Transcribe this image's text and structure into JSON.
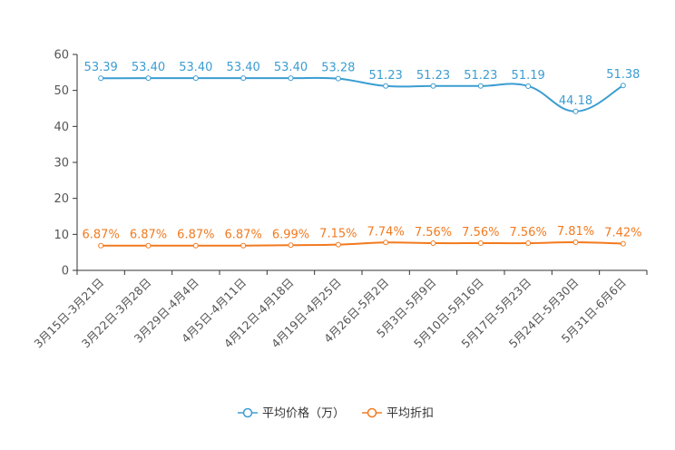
{
  "chart_data": {
    "type": "line",
    "title": "",
    "xlabel": "",
    "ylabel": "",
    "ylim": [
      0,
      60
    ],
    "yticks": [
      0,
      10,
      20,
      30,
      40,
      50,
      60
    ],
    "categories": [
      "3月15日-3月21日",
      "3月22日-3月28日",
      "3月29日-4月4日",
      "4月5日-4月11日",
      "4月12日-4月18日",
      "4月19日-4月25日",
      "4月26日-5月2日",
      "5月3日-5月9日",
      "5月10日-5月16日",
      "5月17日-5月23日",
      "5月24日-5月30日",
      "5月31日-6月6日"
    ],
    "legend_position": "bottom",
    "series": [
      {
        "name": "平均价格（万）",
        "color": "#3b9dd2",
        "values": [
          53.39,
          53.4,
          53.4,
          53.4,
          53.4,
          53.28,
          51.23,
          51.23,
          51.23,
          51.19,
          44.18,
          51.38
        ],
        "labels": [
          "53.39",
          "53.40",
          "53.40",
          "53.40",
          "53.40",
          "53.28",
          "51.23",
          "51.23",
          "51.23",
          "51.19",
          "44.18",
          "51.38"
        ]
      },
      {
        "name": "平均折扣",
        "color": "#f27a1f",
        "values": [
          6.87,
          6.87,
          6.87,
          6.87,
          6.99,
          7.15,
          7.74,
          7.56,
          7.56,
          7.56,
          7.81,
          7.42
        ],
        "labels": [
          "6.87%",
          "6.87%",
          "6.87%",
          "6.87%",
          "6.99%",
          "7.15%",
          "7.74%",
          "7.56%",
          "7.56%",
          "7.56%",
          "7.81%",
          "7.42%"
        ]
      }
    ]
  }
}
